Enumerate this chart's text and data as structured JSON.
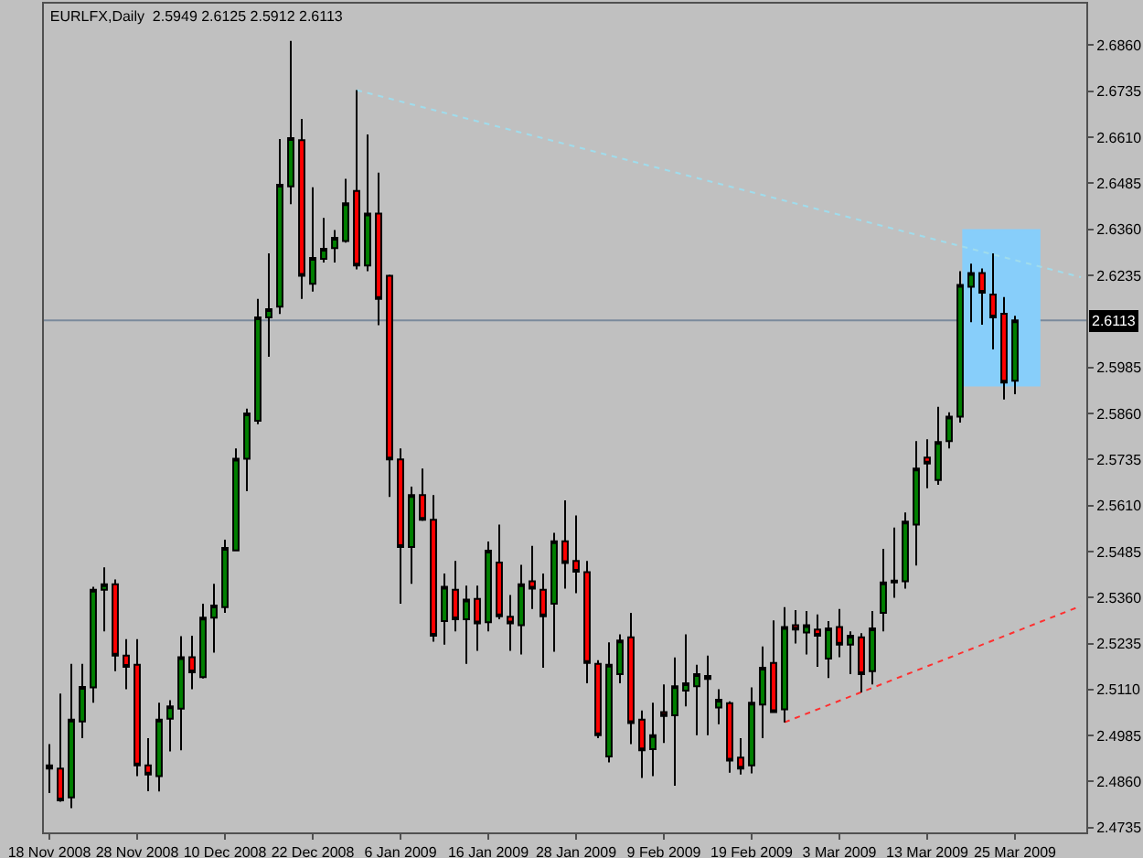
{
  "chart_data": {
    "type": "candlestick",
    "title": "EURLFX,Daily  2.5949 2.6125 2.5912 2.6113",
    "categories": [
      "18 Nov 2008",
      null,
      null,
      null,
      null,
      null,
      null,
      null,
      "28 Nov 2008",
      null,
      null,
      null,
      null,
      null,
      null,
      null,
      "10 Dec 2008",
      null,
      null,
      null,
      null,
      null,
      null,
      null,
      "22 Dec 2008",
      null,
      null,
      null,
      null,
      null,
      null,
      null,
      "6 Jan 2009",
      null,
      null,
      null,
      null,
      null,
      null,
      null,
      "16 Jan 2009",
      null,
      null,
      null,
      null,
      null,
      null,
      null,
      "28 Jan 2009",
      null,
      null,
      null,
      null,
      null,
      null,
      null,
      "9 Feb 2009",
      null,
      null,
      null,
      null,
      null,
      null,
      null,
      "19 Feb 2009",
      null,
      null,
      null,
      null,
      null,
      null,
      null,
      "3 Mar 2009",
      null,
      null,
      null,
      null,
      null,
      null,
      null,
      "13 Mar 2009",
      null,
      null,
      null,
      null,
      null,
      null,
      null,
      "25 Mar 2009",
      null,
      null,
      null,
      null,
      null,
      null
    ],
    "ohlc": [
      [
        2.4904,
        2.4962,
        2.4829,
        2.4895
      ],
      [
        2.4895,
        2.5099,
        2.4805,
        2.4809
      ],
      [
        2.4817,
        2.518,
        2.4788,
        2.5028
      ],
      [
        2.5023,
        2.518,
        2.4978,
        2.5117
      ],
      [
        2.5116,
        2.5389,
        2.5074,
        2.5381
      ],
      [
        2.5381,
        2.5442,
        2.5268,
        2.5396
      ],
      [
        2.5396,
        2.5409,
        2.516,
        2.5202
      ],
      [
        2.5202,
        2.5247,
        2.5111,
        2.5172
      ],
      [
        2.5177,
        2.5247,
        2.4875,
        2.4904
      ],
      [
        2.4904,
        2.4978,
        2.4834,
        2.4879
      ],
      [
        2.4875,
        2.5074,
        2.4833,
        2.5028
      ],
      [
        2.5031,
        2.5081,
        2.4942,
        2.5064
      ],
      [
        2.5058,
        2.5255,
        2.4945,
        2.5198
      ],
      [
        2.5198,
        2.5256,
        2.5111,
        2.5157
      ],
      [
        2.5144,
        2.5343,
        2.514,
        2.5305
      ],
      [
        2.5305,
        2.5397,
        2.521,
        2.5338
      ],
      [
        2.5334,
        2.5517,
        2.5318,
        2.5495
      ],
      [
        2.5488,
        2.5765,
        2.5487,
        2.5737
      ],
      [
        2.5737,
        2.5873,
        2.5649,
        2.586
      ],
      [
        2.584,
        2.6171,
        2.5831,
        2.6121
      ],
      [
        2.6121,
        2.6295,
        2.6014,
        2.6143
      ],
      [
        2.615,
        2.6605,
        2.613,
        2.6481
      ],
      [
        2.6477,
        2.6872,
        2.6428,
        2.6608
      ],
      [
        2.6602,
        2.666,
        2.6171,
        2.6234
      ],
      [
        2.6212,
        2.6474,
        2.6191,
        2.6282
      ],
      [
        2.628,
        2.6391,
        2.627,
        2.6307
      ],
      [
        2.6309,
        2.6358,
        2.627,
        2.6337
      ],
      [
        2.6328,
        2.6497,
        2.6324,
        2.6431
      ],
      [
        2.6464,
        2.6738,
        2.6251,
        2.6262
      ],
      [
        2.6262,
        2.6618,
        2.6246,
        2.6403
      ],
      [
        2.6403,
        2.6514,
        2.61,
        2.6171
      ],
      [
        2.6234,
        2.6237,
        2.5633,
        2.5735
      ],
      [
        2.5735,
        2.5765,
        2.5343,
        2.5497
      ],
      [
        2.5497,
        2.5661,
        2.5397,
        2.5638
      ],
      [
        2.5638,
        2.571,
        2.5568,
        2.5571
      ],
      [
        2.5571,
        2.5638,
        2.524,
        2.5256
      ],
      [
        2.5296,
        2.5425,
        2.5232,
        2.5389
      ],
      [
        2.5381,
        2.5459,
        2.5268,
        2.5301
      ],
      [
        2.5301,
        2.5392,
        2.518,
        2.5354
      ],
      [
        2.5356,
        2.5392,
        2.5215,
        2.529
      ],
      [
        2.5293,
        2.5512,
        2.5268,
        2.5487
      ],
      [
        2.5455,
        2.5558,
        2.5301,
        2.5309
      ],
      [
        2.5308,
        2.5367,
        2.5215,
        2.529
      ],
      [
        2.5285,
        2.5449,
        2.5205,
        2.5396
      ],
      [
        2.5404,
        2.55,
        2.5329,
        2.5384
      ],
      [
        2.5381,
        2.5425,
        2.5169,
        2.5309
      ],
      [
        2.5343,
        2.5536,
        2.5213,
        2.5513
      ],
      [
        2.5513,
        2.5624,
        2.5384,
        2.5454
      ],
      [
        2.5459,
        2.5583,
        2.5372,
        2.543
      ],
      [
        2.5429,
        2.5459,
        2.5127,
        2.5182
      ],
      [
        2.518,
        2.519,
        2.4978,
        2.4986
      ],
      [
        2.4928,
        2.5238,
        2.4912,
        2.5177
      ],
      [
        2.5152,
        2.526,
        2.5127,
        2.5243
      ],
      [
        2.5252,
        2.5318,
        2.4962,
        2.5019
      ],
      [
        2.5028,
        2.5053,
        2.487,
        2.4945
      ],
      [
        2.4948,
        2.5074,
        2.4875,
        2.4986
      ],
      [
        2.5049,
        2.5124,
        2.4965,
        2.5038
      ],
      [
        2.504,
        2.5197,
        2.4849,
        2.5119
      ],
      [
        2.5107,
        2.526,
        2.5064,
        2.5127
      ],
      [
        2.5119,
        2.5177,
        2.4986,
        2.5152
      ],
      [
        2.5147,
        2.5202,
        2.4986,
        2.5139
      ],
      [
        2.5061,
        2.5111,
        2.5016,
        2.5082
      ],
      [
        2.5073,
        2.5078,
        2.4884,
        2.4917
      ],
      [
        2.4925,
        2.4978,
        2.4879,
        2.4895
      ],
      [
        2.4904,
        2.5116,
        2.4882,
        2.5074
      ],
      [
        2.5069,
        2.5227,
        2.4978,
        2.5169
      ],
      [
        2.5182,
        2.5298,
        2.5048,
        2.5049
      ],
      [
        2.5056,
        2.5334,
        2.5021,
        2.528
      ],
      [
        2.5285,
        2.5326,
        2.5235,
        2.5273
      ],
      [
        2.5265,
        2.5323,
        2.5205,
        2.5285
      ],
      [
        2.5273,
        2.5314,
        2.5172,
        2.5256
      ],
      [
        2.5194,
        2.5296,
        2.5141,
        2.5276
      ],
      [
        2.528,
        2.5329,
        2.5198,
        2.5232
      ],
      [
        2.5232,
        2.5268,
        2.5152,
        2.5256
      ],
      [
        2.5252,
        2.5263,
        2.5102,
        2.5152
      ],
      [
        2.516,
        2.5323,
        2.5124,
        2.5276
      ],
      [
        2.5318,
        2.5492,
        2.5268,
        2.5401
      ],
      [
        2.5401,
        2.555,
        2.5359,
        2.5406
      ],
      [
        2.5404,
        2.5591,
        2.5384,
        2.5566
      ],
      [
        2.5558,
        2.5785,
        2.5447,
        2.571
      ],
      [
        2.574,
        2.579,
        2.5657,
        2.5724
      ],
      [
        2.5679,
        2.5878,
        2.5666,
        2.5782
      ],
      [
        2.5785,
        2.5863,
        2.5765,
        2.5851
      ],
      [
        2.5851,
        2.6246,
        2.5835,
        2.6209
      ],
      [
        2.6204,
        2.6267,
        2.6108,
        2.6241
      ],
      [
        2.6241,
        2.6254,
        2.6101,
        2.6188
      ],
      [
        2.6183,
        2.6295,
        2.6034,
        2.6121
      ],
      [
        2.6131,
        2.6176,
        2.5898,
        2.5944
      ],
      [
        2.5949,
        2.6125,
        2.5912,
        2.6113
      ],
      null,
      null,
      null,
      null,
      null,
      null
    ],
    "series": [
      {
        "type": "line",
        "color": "#a0dcec",
        "line_style": "dotted",
        "values": [
          null,
          null,
          null,
          null,
          null,
          null,
          null,
          null,
          null,
          null,
          null,
          null,
          null,
          null,
          null,
          null,
          null,
          null,
          null,
          null,
          null,
          null,
          null,
          null,
          null,
          null,
          null,
          null,
          2.6738,
          null,
          null,
          null,
          null,
          null,
          null,
          null,
          null,
          null,
          null,
          null,
          null,
          null,
          null,
          null,
          null,
          null,
          null,
          null,
          null,
          null,
          null,
          null,
          null,
          null,
          null,
          null,
          null,
          null,
          null,
          null,
          null,
          null,
          null,
          null,
          null,
          null,
          null,
          null,
          null,
          null,
          null,
          null,
          null,
          null,
          null,
          null,
          null,
          null,
          null,
          null,
          null,
          null,
          null,
          null,
          null,
          null,
          null,
          null,
          null,
          null,
          null,
          null,
          null,
          null,
          2.623
        ]
      },
      {
        "type": "line",
        "color": "#ff3030",
        "line_style": "dotted",
        "values": [
          null,
          null,
          null,
          null,
          null,
          null,
          null,
          null,
          null,
          null,
          null,
          null,
          null,
          null,
          null,
          null,
          null,
          null,
          null,
          null,
          null,
          null,
          null,
          null,
          null,
          null,
          null,
          null,
          null,
          null,
          null,
          null,
          null,
          null,
          null,
          null,
          null,
          null,
          null,
          null,
          null,
          null,
          null,
          null,
          null,
          null,
          null,
          null,
          null,
          null,
          null,
          null,
          null,
          null,
          null,
          null,
          null,
          null,
          null,
          null,
          null,
          null,
          null,
          null,
          null,
          null,
          null,
          2.5021,
          null,
          null,
          null,
          null,
          null,
          null,
          null,
          null,
          null,
          null,
          null,
          null,
          null,
          null,
          null,
          null,
          null,
          null,
          null,
          null,
          null,
          null,
          null,
          null,
          null,
          null,
          2.5337
        ]
      }
    ],
    "ref_lines": [
      {
        "axis": "y",
        "value": 2.6113,
        "label": "2.6113",
        "color": "#7a8a9c"
      }
    ],
    "ylim": [
      2.4722,
      2.6973
    ],
    "yticks": [
      {
        "value": 2.686,
        "label": "2.6860"
      },
      2.6735,
      {
        "value": 2.661,
        "label": "2.6610"
      },
      2.6485,
      {
        "value": 2.636,
        "label": "2.6360"
      },
      2.6235,
      2.5985,
      {
        "value": 2.586,
        "label": "2.5860"
      },
      2.5735,
      {
        "value": 2.561,
        "label": "2.5610"
      },
      2.5485,
      {
        "value": 2.536,
        "label": "2.5360"
      },
      2.5235,
      {
        "value": 2.511,
        "label": "2.5110"
      },
      2.4985,
      {
        "value": 2.486,
        "label": "2.4860"
      },
      2.4735
    ]
  }
}
